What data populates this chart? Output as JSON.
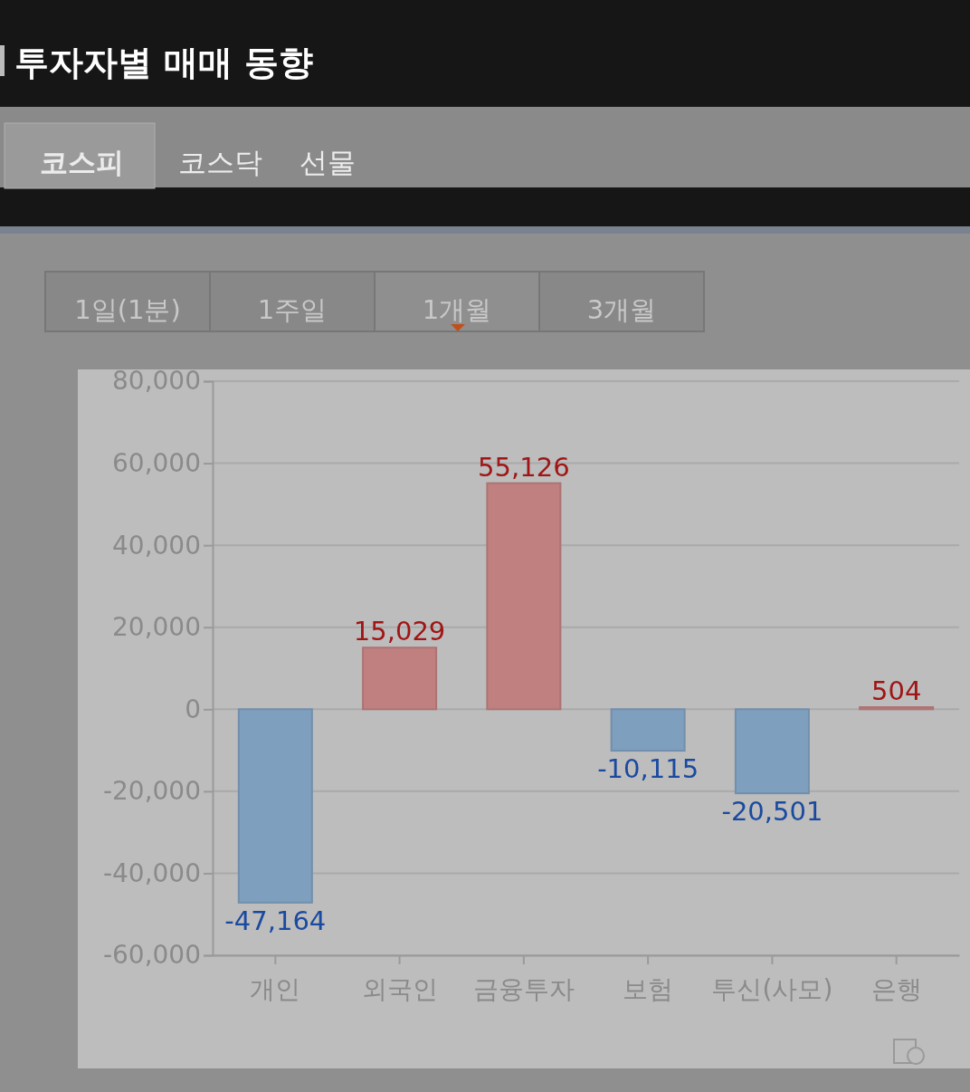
{
  "chart_data": {
    "type": "bar",
    "title": "투자자별 매매 동향",
    "annotations": [
      "코스피",
      "코스닥",
      "선물",
      "1일(1분)",
      "1주일",
      "1개월",
      "3개월"
    ],
    "categories": [
      "개인",
      "외국인",
      "금융투자",
      "보험",
      "투신(사모)",
      "은행"
    ],
    "values": [
      -47164,
      15029,
      55126,
      -10115,
      -20501,
      504
    ],
    "colors": [
      "#7f9fbf",
      "#c08080",
      "#c08080",
      "#7f9fbf",
      "#7f9fbf",
      "#c08080"
    ],
    "value_labels": [
      "-47,164",
      "15,029",
      "55,126",
      "-10,115",
      "-20,501",
      "504"
    ],
    "ylim": [
      -60000,
      80000
    ],
    "yticks": [
      {
        "value": -60000,
        "label": "-60,000"
      },
      {
        "value": -40000,
        "label": "-40,000"
      },
      {
        "value": -20000,
        "label": "-20,000"
      },
      0,
      {
        "value": 20000,
        "label": "20,000"
      },
      {
        "value": 40000,
        "label": "40,000"
      },
      {
        "value": 60000,
        "label": "60,000"
      },
      {
        "value": 80000,
        "label": "80,000"
      }
    ],
    "grid": "y"
  }
}
